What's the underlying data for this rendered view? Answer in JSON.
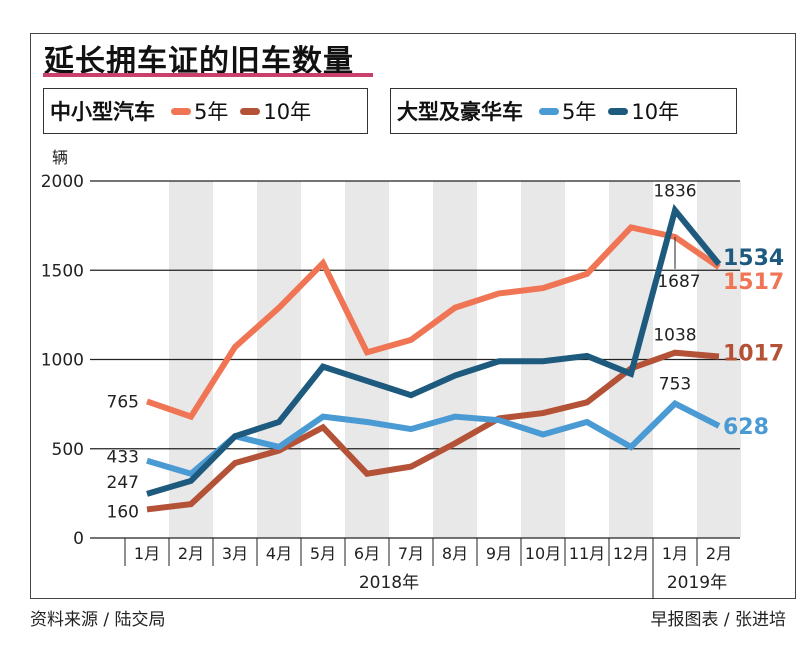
{
  "title": "延长拥车证的旧车数量",
  "legend": {
    "groups": [
      {
        "label": "中小型汽车",
        "items": [
          {
            "label": "5年",
            "color": "#ef7554"
          },
          {
            "label": "10年",
            "color": "#b45238"
          }
        ]
      },
      {
        "label": "大型及豪华车",
        "items": [
          {
            "label": "5年",
            "color": "#4a9ad4"
          },
          {
            "label": "10年",
            "color": "#1d5a7e"
          }
        ]
      }
    ]
  },
  "footer": {
    "source": "资料来源 / 陆交局",
    "credit": "早报图表 / 张进培"
  },
  "chart_data": {
    "type": "line",
    "title": "延长拥车证的旧车数量",
    "ylabel": "辆",
    "ylim": [
      0,
      2000
    ],
    "yticks": [
      0,
      500,
      1000,
      1500,
      2000
    ],
    "grid": "horizontal",
    "categories": [
      "1月",
      "2月",
      "3月",
      "4月",
      "5月",
      "6月",
      "7月",
      "8月",
      "9月",
      "10月",
      "11月",
      "12月",
      "1月",
      "2月"
    ],
    "year_groups": [
      {
        "label": "2018年",
        "months": 12
      },
      {
        "label": "2019年",
        "months": 2
      }
    ],
    "series": [
      {
        "name": "中小型汽车 5年",
        "color": "#ef7554",
        "values": [
          765,
          680,
          1070,
          1290,
          1540,
          1040,
          1110,
          1290,
          1370,
          1400,
          1480,
          1740,
          1687,
          1517
        ]
      },
      {
        "name": "中小型汽车 10年",
        "color": "#b45238",
        "values": [
          160,
          190,
          420,
          490,
          620,
          360,
          400,
          530,
          670,
          700,
          760,
          950,
          1038,
          1017
        ]
      },
      {
        "name": "大型及豪华车 5年",
        "color": "#4a9ad4",
        "values": [
          433,
          360,
          570,
          510,
          680,
          650,
          610,
          680,
          660,
          580,
          650,
          510,
          753,
          628
        ]
      },
      {
        "name": "大型及豪华车 10年",
        "color": "#1d5a7e",
        "values": [
          247,
          320,
          570,
          650,
          960,
          880,
          800,
          910,
          990,
          990,
          1020,
          920,
          1836,
          1534
        ]
      }
    ],
    "annotations": [
      {
        "text": "765",
        "series": 0,
        "index": 0
      },
      {
        "text": "433",
        "series": 2,
        "index": 0
      },
      {
        "text": "247",
        "series": 3,
        "index": 0
      },
      {
        "text": "160",
        "series": 1,
        "index": 0
      },
      {
        "text": "1836",
        "series": 3,
        "index": 12
      },
      {
        "text": "1687",
        "series": 0,
        "index": 12
      },
      {
        "text": "1038",
        "series": 1,
        "index": 12
      },
      {
        "text": "753",
        "series": 2,
        "index": 12
      },
      {
        "text": "1534",
        "series": 3,
        "index": 13
      },
      {
        "text": "1517",
        "series": 0,
        "index": 13
      },
      {
        "text": "1017",
        "series": 1,
        "index": 13
      },
      {
        "text": "628",
        "series": 2,
        "index": 13
      }
    ]
  }
}
